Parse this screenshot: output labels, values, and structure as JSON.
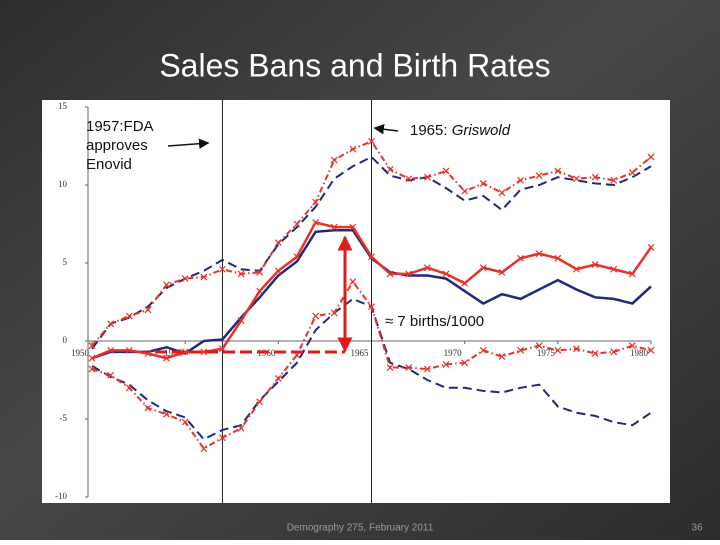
{
  "slide": {
    "title": "Sales Bans and Birth Rates",
    "footer": "Demography 275, February 2011",
    "page": "36"
  },
  "chart_data": {
    "type": "line",
    "x": [
      1950,
      1951,
      1952,
      1953,
      1954,
      1955,
      1956,
      1957,
      1958,
      1959,
      1960,
      1961,
      1962,
      1963,
      1964,
      1965,
      1966,
      1967,
      1968,
      1969,
      1970,
      1971,
      1972,
      1973,
      1974,
      1975,
      1976,
      1977,
      1978,
      1979,
      1980
    ],
    "series": [
      {
        "color": "#1f2a7a",
        "style": "solid",
        "marker": "none",
        "values": [
          -1.1,
          -0.7,
          -0.7,
          -0.7,
          -0.4,
          -0.8,
          0,
          0.1,
          1.5,
          2.8,
          4.2,
          5.1,
          7.0,
          7.1,
          7.1,
          5.3,
          4.4,
          4.2,
          4.2,
          4.0,
          3.2,
          2.4,
          3.0,
          2.7,
          3.3,
          3.9,
          3.3,
          2.8,
          2.7,
          2.4,
          3.5
        ]
      },
      {
        "color": "#e8312a",
        "style": "solid",
        "marker": "x",
        "values": [
          -1.1,
          -0.6,
          -0.6,
          -0.8,
          -1.1,
          -0.7,
          -0.7,
          -0.5,
          1.3,
          3.2,
          4.5,
          5.4,
          7.6,
          7.3,
          7.3,
          5.4,
          4.3,
          4.3,
          4.7,
          4.3,
          3.7,
          4.7,
          4.4,
          5.3,
          5.6,
          5.3,
          4.6,
          4.9,
          4.6,
          4.3,
          6.0
        ]
      },
      {
        "color": "#1f2a7a",
        "style": "dashed",
        "marker": "none",
        "values": [
          -0.5,
          1.1,
          1.5,
          2.2,
          3.4,
          4.0,
          4.5,
          5.2,
          4.6,
          4.5,
          6.2,
          7.3,
          8.6,
          10.4,
          11.2,
          11.8,
          10.6,
          10.3,
          10.5,
          9.8,
          9.0,
          9.3,
          8.4,
          9.7,
          10.0,
          10.5,
          10.3,
          10.1,
          10.0,
          10.5,
          11.2
        ]
      },
      {
        "color": "#e8312a",
        "style": "dashdot",
        "marker": "x",
        "values": [
          -0.3,
          1.1,
          1.6,
          2.0,
          3.6,
          4.0,
          4.1,
          4.6,
          4.3,
          4.4,
          6.3,
          7.5,
          8.9,
          11.6,
          12.3,
          12.8,
          11.0,
          10.4,
          10.5,
          10.9,
          9.6,
          10.1,
          9.5,
          10.3,
          10.6,
          10.9,
          10.4,
          10.5,
          10.3,
          10.8,
          11.8
        ]
      },
      {
        "color": "#1f2a7a",
        "style": "dashed",
        "marker": "none",
        "values": [
          -1.6,
          -2.3,
          -2.8,
          -3.8,
          -4.5,
          -4.9,
          -6.3,
          -5.7,
          -5.4,
          -3.8,
          -2.6,
          -1.4,
          0.7,
          1.8,
          2.7,
          2.2,
          -1.4,
          -1.8,
          -2.5,
          -3.0,
          -3.0,
          -3.2,
          -3.3,
          -3.0,
          -2.8,
          -4.2,
          -4.6,
          -4.8,
          -5.2,
          -5.4,
          -4.6
        ]
      },
      {
        "color": "#e8312a",
        "style": "dashdot",
        "marker": "x",
        "values": [
          -1.8,
          -2.2,
          -3.0,
          -4.3,
          -4.7,
          -5.2,
          -6.9,
          -6.2,
          -5.6,
          -3.9,
          -2.4,
          -0.9,
          1.6,
          1.8,
          3.8,
          2.2,
          -1.7,
          -1.7,
          -1.8,
          -1.5,
          -1.4,
          -0.6,
          -1.0,
          -0.6,
          -0.3,
          -0.6,
          -0.5,
          -0.8,
          -0.7,
          -0.3,
          -0.6
        ]
      }
    ],
    "xlim": [
      1950,
      1980
    ],
    "xticks": [
      1950,
      1955,
      1960,
      1965,
      1970,
      1975,
      1980
    ],
    "ylim": [
      -10,
      15
    ],
    "yticks": [
      -10,
      -5,
      0,
      5,
      10,
      15
    ],
    "annotations": [
      {
        "lines": [
          "1957:FDA",
          "approves",
          "Enovid"
        ],
        "x": 1957
      },
      {
        "parts": [
          "1965: ",
          "Griswold"
        ],
        "x": 1965
      },
      {
        "text": "≈ 7 births/1000"
      }
    ]
  }
}
